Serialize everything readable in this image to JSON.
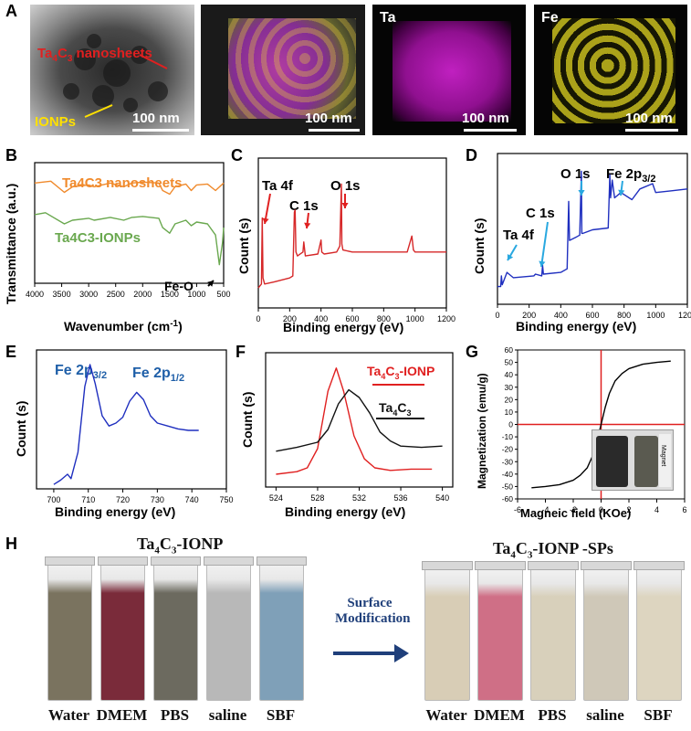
{
  "panel_labels": {
    "a": "A",
    "b": "B",
    "c": "C",
    "d": "D",
    "e": "E",
    "f": "F",
    "g": "G",
    "h": "H"
  },
  "panelA": {
    "tem_label_prefix": "Ta",
    "tem_label_sub4": "4",
    "tem_label_mid": "C",
    "tem_label_sub3": "3",
    "tem_label_suffix": " nanosheets",
    "ionps_label": "IONPs",
    "scale": "100 nm",
    "map_ta": "Ta",
    "map_fe": "Fe"
  },
  "chart_data": [
    {
      "panel": "B",
      "type": "line",
      "xlabel": "Wavenumber (cm-1)",
      "ylabel": "Transmittance (a.u.)",
      "xlim": [
        4000,
        500
      ],
      "xticks": [
        4000,
        3500,
        3000,
        2500,
        2000,
        1500,
        1000,
        500
      ],
      "series": [
        {
          "name": "Ta4C3 nanosheets",
          "color": "#f08a2c",
          "x": [
            4000,
            3700,
            3450,
            3300,
            3000,
            2900,
            2600,
            2350,
            2200,
            2000,
            1700,
            1630,
            1500,
            1400,
            1200,
            1100,
            1000,
            800,
            650,
            500
          ],
          "y": [
            6.4,
            6.5,
            5.9,
            6.2,
            6.3,
            6.2,
            6.4,
            6.2,
            6.4,
            6.45,
            6.4,
            6.0,
            5.8,
            6.2,
            6.35,
            6.0,
            6.3,
            6.35,
            6.0,
            6.4
          ]
        },
        {
          "name": "Ta4C3-IONPs",
          "color": "#6aa84f",
          "x": [
            4000,
            3800,
            3450,
            3300,
            3000,
            2900,
            2600,
            2350,
            2200,
            2000,
            1700,
            1630,
            1500,
            1400,
            1200,
            1100,
            1000,
            800,
            650,
            580,
            520,
            500
          ],
          "y": [
            4.7,
            4.8,
            4.2,
            4.4,
            4.5,
            4.4,
            4.55,
            4.4,
            4.55,
            4.6,
            4.5,
            4.0,
            3.7,
            4.2,
            4.4,
            4.1,
            4.3,
            4.2,
            3.6,
            2.0,
            3.2,
            4.0
          ]
        }
      ],
      "annotation": "Fe-O"
    },
    {
      "panel": "C",
      "type": "line",
      "xlabel": "Binding energy (eV)",
      "ylabel": "Count (s)",
      "xlim": [
        0,
        1200
      ],
      "xticks": [
        0,
        200,
        400,
        600,
        800,
        1000,
        1200
      ],
      "series": [
        {
          "color": "#d62728",
          "x": [
            0,
            20,
            25,
            30,
            40,
            100,
            200,
            220,
            230,
            235,
            240,
            250,
            285,
            290,
            300,
            380,
            400,
            405,
            420,
            500,
            520,
            530,
            533,
            540,
            600,
            700,
            800,
            950,
            980,
            990,
            1000,
            1100,
            1200
          ],
          "y": [
            1.0,
            1.2,
            4.5,
            1.5,
            1.2,
            1.3,
            1.5,
            1.6,
            4.8,
            4.9,
            2.8,
            2.6,
            2.8,
            3.3,
            2.6,
            2.7,
            3.4,
            2.8,
            2.7,
            2.8,
            3.1,
            6.2,
            3.2,
            2.9,
            2.8,
            2.8,
            2.8,
            2.8,
            3.6,
            2.9,
            2.8,
            2.8,
            2.8
          ]
        }
      ],
      "annotations": [
        "Ta 4f",
        "C 1s",
        "O 1s"
      ]
    },
    {
      "panel": "D",
      "type": "line",
      "xlabel": "Binding energy (eV)",
      "ylabel": "Count (s)",
      "xlim": [
        0,
        1200
      ],
      "xticks": [
        0,
        200,
        400,
        600,
        800,
        1000,
        1200
      ],
      "series": [
        {
          "color": "#1f2fbf",
          "x": [
            0,
            20,
            25,
            30,
            60,
            100,
            230,
            240,
            280,
            285,
            290,
            400,
            440,
            450,
            455,
            500,
            520,
            530,
            533,
            540,
            600,
            700,
            705,
            710,
            715,
            720,
            725,
            740,
            780,
            850,
            900,
            980,
            1000,
            1100,
            1200
          ],
          "y": [
            1.0,
            1.0,
            1.6,
            1.1,
            1.8,
            1.5,
            1.6,
            1.7,
            1.6,
            2.2,
            1.7,
            1.8,
            2.0,
            5.8,
            3.6,
            3.8,
            3.9,
            7.5,
            4.0,
            4.0,
            4.2,
            4.3,
            5.8,
            7.3,
            6.0,
            6.5,
            7.0,
            6.0,
            6.3,
            5.9,
            6.5,
            6.8,
            6.3,
            6.4,
            6.5
          ]
        }
      ],
      "annotations": [
        "Ta 4f",
        "C 1s",
        "O 1s",
        "Fe 2p3/2"
      ]
    },
    {
      "panel": "E",
      "type": "line",
      "xlabel": "Binding energy (eV)",
      "ylabel": "Count (s)",
      "xlim": [
        695,
        750
      ],
      "xticks": [
        700,
        710,
        720,
        730,
        740,
        750
      ],
      "series": [
        {
          "color": "#1f2fbf",
          "x": [
            700,
            702,
            704,
            705,
            707,
            709,
            710.5,
            712,
            714,
            716,
            718,
            720,
            722,
            724,
            726,
            728,
            730,
            733,
            736,
            739,
            742
          ],
          "y": [
            0.3,
            0.6,
            1.0,
            0.7,
            2.5,
            7.0,
            8.5,
            7.2,
            5.0,
            4.3,
            4.5,
            4.9,
            6.0,
            6.6,
            6.1,
            5.0,
            4.5,
            4.3,
            4.1,
            4.0,
            4.0
          ]
        }
      ],
      "annotations": [
        "Fe 2p3/2",
        "Fe 2p1/2"
      ]
    },
    {
      "panel": "F",
      "type": "line",
      "xlabel": "Binding energy (eV)",
      "ylabel": "Count (s)",
      "xlim": [
        523,
        541
      ],
      "xticks": [
        524,
        528,
        532,
        536,
        540
      ],
      "series": [
        {
          "name": "Ta4C3-IONP",
          "color": "#e02020",
          "x": [
            524,
            526,
            527,
            528,
            529,
            529.8,
            530.5,
            531.5,
            532.5,
            533.5,
            535,
            537,
            539
          ],
          "y": [
            1.0,
            1.2,
            1.5,
            3.0,
            7.5,
            9.3,
            7.5,
            4.0,
            2.2,
            1.5,
            1.3,
            1.4,
            1.4
          ]
        },
        {
          "name": "Ta4C3",
          "color": "#111111",
          "x": [
            524,
            526,
            528,
            529,
            530,
            531,
            532,
            533,
            534,
            535,
            536,
            538,
            540
          ],
          "y": [
            2.8,
            3.1,
            3.5,
            4.5,
            6.5,
            7.6,
            7.0,
            5.8,
            4.3,
            3.6,
            3.2,
            3.1,
            3.2
          ]
        }
      ]
    },
    {
      "panel": "G",
      "type": "line",
      "xlabel": "Magneic field (KOe)",
      "ylabel": "Magnetization (emu/g)",
      "xlim": [
        -6,
        6
      ],
      "ylim": [
        -60,
        60
      ],
      "xticks": [
        -6,
        -4,
        -2,
        0,
        2,
        4,
        6
      ],
      "yticks": [
        -60,
        -50,
        -40,
        -30,
        -20,
        -10,
        0,
        10,
        20,
        30,
        40,
        50,
        60
      ],
      "series": [
        {
          "color": "#000000",
          "x": [
            -5,
            -4,
            -3,
            -2,
            -1.5,
            -1,
            -0.6,
            -0.3,
            0,
            0.3,
            0.6,
            1,
            1.5,
            2,
            3,
            4,
            5
          ],
          "y": [
            -51,
            -50,
            -48.5,
            -45,
            -41,
            -35,
            -25,
            -14,
            0,
            14,
            25,
            35,
            41,
            45,
            48.5,
            50,
            51
          ]
        }
      ],
      "inset_label": "Magnet"
    }
  ],
  "chart_text": {
    "b_series1": "Ta4C3 nanosheets",
    "b_series2": "Ta4C3-IONPs",
    "b_annot": "Fe-O",
    "b_xlabel": "Wavenumber (cm",
    "b_xlabel_sup": "-1",
    "b_xlabel_end": ")",
    "b_ylabel": "Transmittance (a.u.)",
    "count": "Count (s)",
    "be": "Binding energy (eV)",
    "ta4f": "Ta 4f",
    "c1s": "C 1s",
    "o1s": "O 1s",
    "fe2p": "Fe 2p",
    "fe32": "3/2",
    "fe12": "1/2",
    "f_leg1": "Ta4C3-IONP",
    "f_leg2": "Ta4C3",
    "g_ylabel": "Magnetization (emu/g)",
    "g_xlabel": "Magneic field (KOe)",
    "g_magnet": "Magnet"
  },
  "panelH": {
    "left_title_pre": "Ta",
    "left_title_4": "4",
    "left_title_c": "C",
    "left_title_3": "3",
    "left_title_post": "-IONP",
    "right_title_post": "-IONP -SPs",
    "arrow_text1": "Surface",
    "arrow_text2": "Modification",
    "left_labels": [
      "Water",
      "DMEM",
      "PBS",
      "saline",
      "SBF"
    ],
    "right_labels": [
      "Water",
      "DMEM",
      "PBS",
      "saline",
      "SBF"
    ],
    "left_colors": [
      "#7a735f",
      "#7a2b3a",
      "#6c6a5f",
      "#b8b8b8",
      "#7fa0b8"
    ],
    "right_colors": [
      "#d8cdb6",
      "#cf6f86",
      "#d8d0bb",
      "#cfc8b8",
      "#ddd5c0"
    ]
  }
}
